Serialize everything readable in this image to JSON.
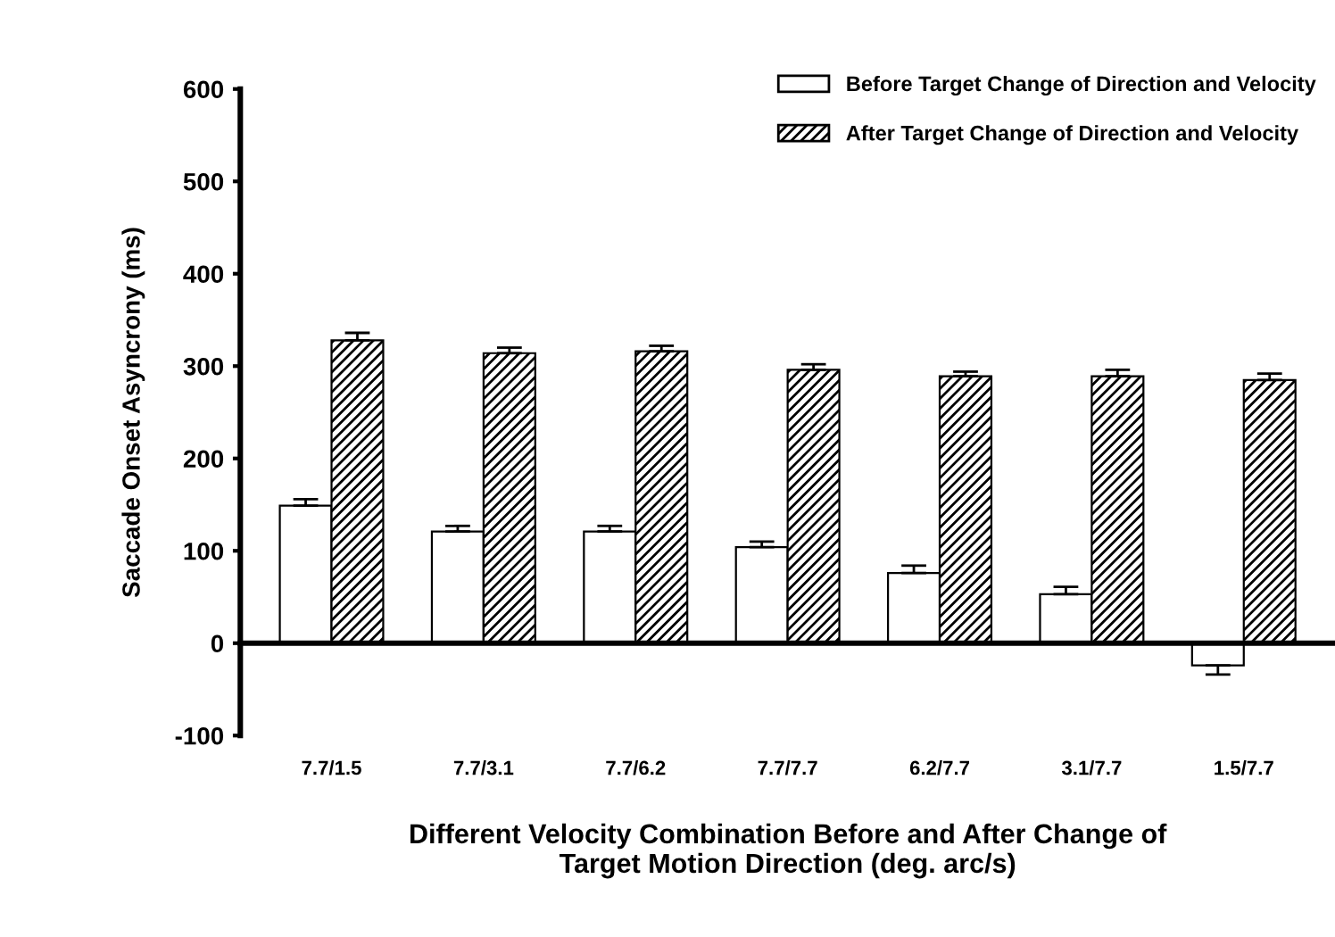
{
  "chart_data": {
    "type": "bar",
    "categories": [
      "7.7/1.5",
      "7.7/3.1",
      "7.7/6.2",
      "7.7/7.7",
      "6.2/7.7",
      "3.1/7.7",
      "1.5/7.7"
    ],
    "series": [
      {
        "name": "Before Target Change of Direction and Velocity",
        "color": "#ffffff",
        "values": [
          149,
          121,
          121,
          104,
          76,
          53,
          -24
        ],
        "errors": [
          7,
          6,
          6,
          6,
          8,
          8,
          10
        ]
      },
      {
        "name": "After Target Change of Direction and Velocity",
        "color": "#000000",
        "values": [
          328,
          314,
          316,
          296,
          289,
          289,
          285
        ],
        "errors": [
          8,
          6,
          6,
          6,
          5,
          7,
          7
        ]
      }
    ],
    "ylabel": "Saccade Onset Asyncrony (ms)",
    "xlabel": "Different Velocity Combination Before and After Change of\nTarget Motion Direction (deg. arc/s)",
    "ylim": [
      -100,
      600
    ],
    "yticks": [
      -100,
      0,
      100,
      200,
      300,
      400,
      500,
      600
    ],
    "legend": "top right"
  }
}
